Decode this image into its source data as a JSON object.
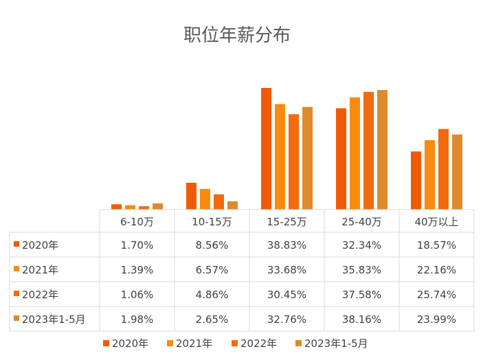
{
  "chart_data": {
    "type": "bar",
    "title": "职位年薪分布",
    "categories": [
      "6-10万",
      "10-15万",
      "15-25万",
      "25-40万",
      "40万以上"
    ],
    "series": [
      {
        "name": "2020年",
        "color": "#f15a05",
        "values": [
          1.7,
          8.56,
          38.83,
          32.34,
          18.57
        ],
        "labels": [
          "1.70%",
          "8.56%",
          "38.83%",
          "32.34%",
          "18.57%"
        ]
      },
      {
        "name": "2021年",
        "color": "#f88b10",
        "values": [
          1.39,
          6.57,
          33.68,
          35.83,
          22.16
        ],
        "labels": [
          "1.39%",
          "6.57%",
          "33.68%",
          "35.83%",
          "22.16%"
        ]
      },
      {
        "name": "2022年",
        "color": "#f26a0c",
        "values": [
          1.06,
          4.86,
          30.45,
          37.58,
          25.74
        ],
        "labels": [
          "1.06%",
          "4.86%",
          "30.45%",
          "37.58%",
          "25.74%"
        ]
      },
      {
        "name": "2023年1-5月",
        "color": "#df8a2e",
        "values": [
          1.98,
          2.65,
          32.76,
          38.16,
          23.99
        ],
        "labels": [
          "1.98%",
          "2.65%",
          "32.76%",
          "38.16%",
          "23.99%"
        ]
      }
    ],
    "ylim": [
      0,
      40
    ],
    "legend_position": "bottom",
    "grid": false,
    "data_table": true
  }
}
